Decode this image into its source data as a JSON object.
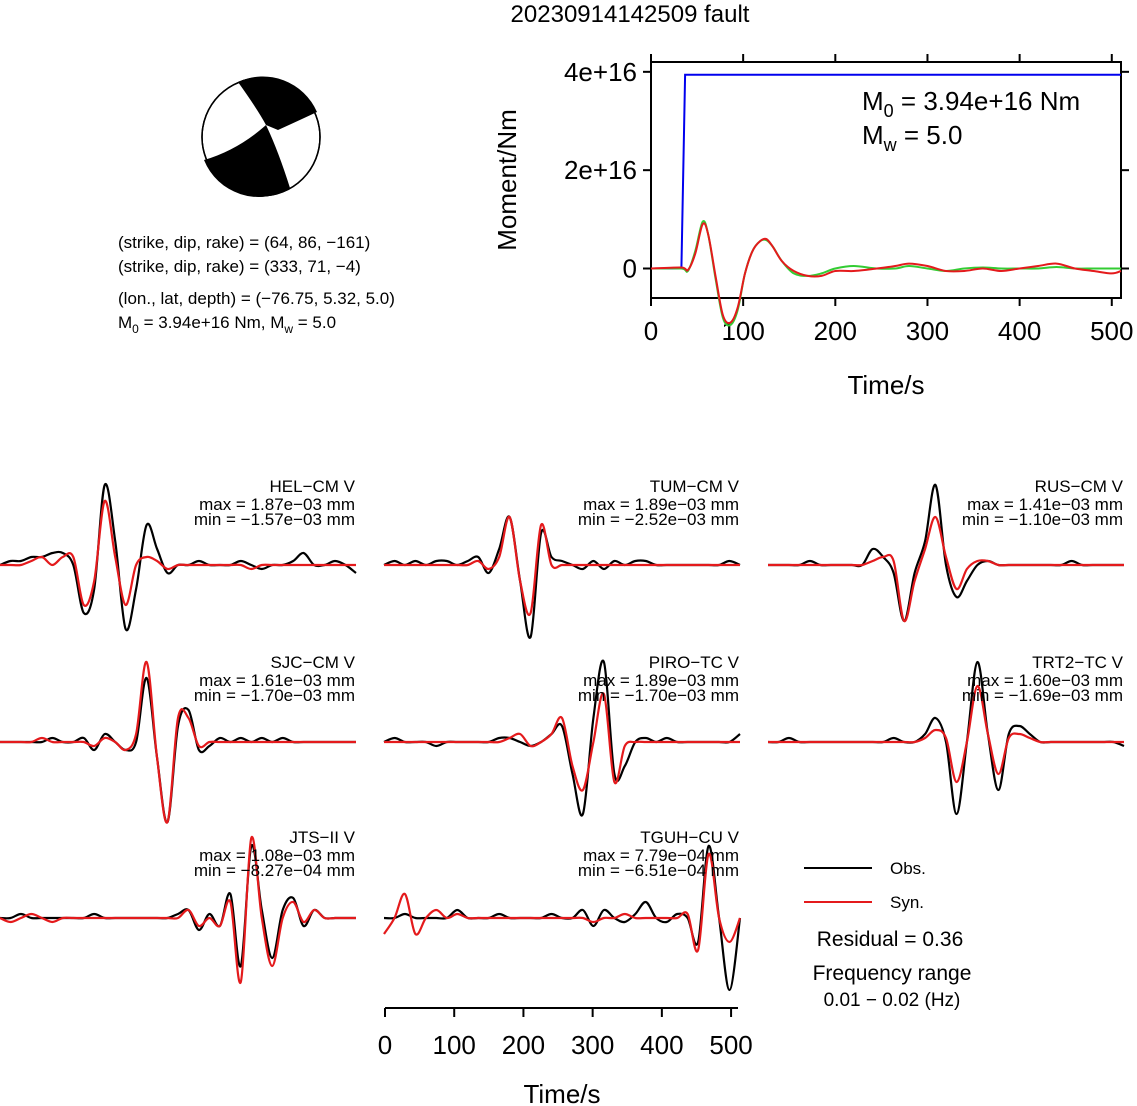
{
  "title": "20230914142509 fault",
  "mechanism": {
    "lines": [
      "(strike, dip, rake) = (64, 86, −161)",
      "(strike, dip, rake) = (333, 71, −4)",
      "(lon., lat, depth) = (−76.75, 5.32, 5.0)"
    ],
    "m0_line_prefix": "M",
    "m0_line_sub": "0",
    "m0_line_rest": " = 3.94e+16 Nm, M",
    "mw_line_sub": "w",
    "mw_line_rest": " = 5.0"
  },
  "moment_box": {
    "m0_prefix": "M",
    "m0_sub": "0",
    "m0_value": " = 3.94e+16 Nm",
    "mw_prefix": "M",
    "mw_sub": "w",
    "mw_value": " = 5.0"
  },
  "legend": {
    "obs": "Obs.",
    "syn": "Syn."
  },
  "residual": "Residual = 0.36",
  "freq_label": "Frequency range",
  "freq_value": "0.01 − 0.02 (Hz)",
  "colors": {
    "obs": "#000000",
    "syn": "#e41a1c",
    "moment": "#0000ee",
    "green": "#33cc33"
  },
  "chart_data": [
    {
      "type": "line",
      "ylabel": "Moment/Nm",
      "xlabel": "Time/s",
      "xlim": [
        0,
        510
      ],
      "ylim": [
        -6000000000000000.0,
        4.2e+16
      ],
      "xticks": [
        0,
        100,
        200,
        300,
        400,
        500
      ],
      "yticks": [
        0,
        2e+16,
        4e+16
      ],
      "ytick_labels": [
        "0",
        "2e+16",
        "4e+16"
      ],
      "series": [
        {
          "x": [
            0,
            33,
            37,
            510
          ],
          "y": [
            0,
            0,
            3.94e+16,
            3.94e+16
          ]
        },
        {
          "x": [
            0,
            33,
            40,
            48,
            56,
            62,
            70,
            78,
            86,
            94,
            102,
            110,
            118,
            125,
            132,
            142,
            155,
            170,
            185,
            200,
            220,
            245,
            265,
            280,
            300,
            320,
            340,
            360,
            380,
            400,
            420,
            440,
            460,
            480,
            500,
            510
          ],
          "y": [
            0,
            0,
            -500000000000000.0,
            3500000000000000.0,
            9500000000000000.0,
            7000000000000000.0,
            -2000000000000000.0,
            -1e+16,
            -1.15e+16,
            -8500000000000000.0,
            -1000000000000000.0,
            3500000000000000.0,
            5500000000000000.0,
            5800000000000000.0,
            4500000000000000.0,
            1500000000000000.0,
            -1000000000000000.0,
            -1500000000000000.0,
            -1000000000000000.0,
            0.0,
            500000000000000.0,
            0.0,
            0.0,
            500000000000000.0,
            0.0,
            -500000000000000.0,
            0.0,
            200000000000000.0,
            0.0,
            0.0,
            0.0,
            300000000000000.0,
            0.0,
            0.0,
            0.0,
            0.0
          ]
        },
        {
          "x": [
            0,
            33,
            40,
            48,
            56,
            62,
            70,
            78,
            86,
            94,
            102,
            110,
            118,
            125,
            132,
            142,
            155,
            170,
            185,
            200,
            220,
            245,
            265,
            280,
            300,
            320,
            340,
            360,
            380,
            400,
            420,
            440,
            460,
            480,
            500,
            510
          ],
          "y": [
            0,
            200000000000000.0,
            -300000000000000.0,
            3000000000000000.0,
            9000000000000000.0,
            7000000000000000.0,
            -1500000000000000.0,
            -9500000000000000.0,
            -1.1e+16,
            -8000000000000000.0,
            -1000000000000000.0,
            3500000000000000.0,
            5500000000000000.0,
            6000000000000000.0,
            4500000000000000.0,
            1500000000000000.0,
            -500000000000000.0,
            -1500000000000000.0,
            -1500000000000000.0,
            -500000000000000.0,
            -500000000000000.0,
            0.0,
            500000000000000.0,
            1000000000000000.0,
            500000000000000.0,
            -500000000000000.0,
            -500000000000000.0,
            0.0,
            -500000000000000.0,
            0.0,
            500000000000000.0,
            1000000000000000.0,
            0.0,
            -500000000000000.0,
            -1000000000000000.0,
            -500000000000000.0
          ]
        }
      ]
    },
    {
      "type": "line",
      "xlabel": "Time/s",
      "xlim": [
        0,
        510
      ],
      "xticks": [
        0,
        100,
        200,
        300,
        400,
        500
      ],
      "stations": [
        {
          "name": "HEL−CM V",
          "max": "max = 1.87e−03 mm",
          "min": "min = −1.57e−03 mm",
          "obs": [
            0.0,
            0.05,
            0.05,
            0.1,
            0.1,
            0.15,
            0.15,
            0.0,
            -0.6,
            -0.3,
            1.0,
            0.3,
            -0.8,
            -0.3,
            0.5,
            0.2,
            -0.1,
            0.0,
            0.0,
            0.05,
            0.0,
            0.0,
            0.0,
            0.05,
            0.0,
            -0.05,
            0.0,
            0.0,
            0.05,
            0.15,
            0.0,
            0.0,
            0.05,
            0.0,
            -0.1
          ],
          "syn": [
            0.0,
            0.0,
            0.0,
            0.05,
            0.1,
            0.0,
            0.1,
            0.1,
            -0.5,
            -0.2,
            0.8,
            0.1,
            -0.5,
            0.0,
            0.1,
            0.05,
            -0.05,
            0.0,
            0.0,
            0.0,
            0.0,
            0.0,
            0.0,
            0.0,
            -0.05,
            0.0,
            0.0,
            0.0,
            0.0,
            0.0,
            0.0,
            0.0,
            0.0,
            0.0,
            0.0
          ]
        },
        {
          "name": "TUM−CM V",
          "max": "max = 1.89e−03 mm",
          "min": "min = −2.52e−03 mm",
          "obs": [
            0.0,
            0.05,
            0.0,
            0.05,
            0.0,
            0.05,
            0.05,
            0.0,
            0.05,
            0.1,
            -0.1,
            0.2,
            0.6,
            -0.2,
            -0.9,
            0.4,
            0.1,
            0.05,
            0.0,
            -0.05,
            0.05,
            -0.05,
            0.05,
            0.0,
            0.05,
            0.05,
            0.0,
            0.0,
            0.0,
            0.0,
            0.0,
            0.0,
            0.0,
            0.05,
            0.0
          ],
          "syn": [
            0.0,
            0.0,
            0.0,
            0.0,
            0.0,
            0.0,
            0.0,
            0.0,
            0.0,
            0.05,
            -0.05,
            0.1,
            0.6,
            -0.2,
            -0.6,
            0.5,
            0.0,
            0.0,
            0.0,
            0.0,
            0.0,
            0.0,
            0.0,
            0.0,
            0.0,
            0.0,
            0.0,
            0.0,
            0.0,
            0.0,
            0.0,
            0.0,
            0.0,
            0.0,
            0.0
          ]
        },
        {
          "name": "RUS−CM V",
          "max": "max = 1.41e−03 mm",
          "min": "min = −1.10e−03 mm",
          "obs": [
            0.0,
            0.0,
            0.0,
            0.0,
            0.05,
            0.0,
            0.0,
            0.0,
            0.0,
            0.0,
            0.2,
            0.1,
            -0.1,
            -0.7,
            -0.1,
            0.3,
            1.0,
            0.0,
            -0.4,
            -0.2,
            0.0,
            0.05,
            0.0,
            0.0,
            0.0,
            0.0,
            0.0,
            0.0,
            0.0,
            0.05,
            0.0,
            0.0,
            0.0,
            0.0,
            0.0
          ],
          "syn": [
            0.0,
            0.0,
            0.0,
            0.0,
            0.0,
            0.0,
            0.0,
            0.0,
            0.0,
            0.0,
            0.05,
            0.1,
            0.05,
            -0.7,
            -0.2,
            0.2,
            0.6,
            0.1,
            -0.3,
            -0.05,
            0.05,
            0.05,
            0.0,
            0.0,
            0.0,
            0.0,
            0.0,
            0.0,
            0.0,
            0.0,
            0.0,
            0.0,
            0.0,
            0.0,
            0.0
          ]
        },
        {
          "name": "SJC−CM V",
          "max": "max = 1.61e−03 mm",
          "min": "min = −1.70e−03 mm",
          "obs": [
            0.0,
            0.0,
            0.0,
            0.0,
            0.0,
            0.05,
            0.0,
            0.0,
            0.05,
            -0.1,
            0.1,
            0.0,
            -0.1,
            0.0,
            0.8,
            -0.2,
            -1.0,
            0.2,
            0.4,
            -0.1,
            -0.05,
            0.05,
            0.0,
            0.05,
            0.0,
            0.05,
            0.0,
            0.05,
            0.0,
            0.0,
            0.0,
            0.0,
            0.0,
            0.0,
            0.0
          ],
          "syn": [
            0.0,
            0.0,
            0.0,
            0.0,
            0.05,
            0.0,
            0.0,
            0.0,
            0.0,
            -0.05,
            0.05,
            0.0,
            -0.1,
            0.1,
            1.0,
            -0.2,
            -1.0,
            0.3,
            0.3,
            -0.05,
            0.0,
            0.0,
            0.0,
            0.0,
            0.0,
            0.0,
            0.0,
            0.0,
            0.0,
            0.0,
            0.0,
            0.0,
            0.0,
            0.0,
            0.0
          ]
        },
        {
          "name": "PIRO−TC V",
          "max": "max = 1.89e−03 mm",
          "min": "min = −1.70e−03 mm",
          "obs": [
            0.0,
            0.05,
            0.0,
            0.0,
            0.0,
            -0.05,
            0.0,
            0.0,
            0.0,
            0.0,
            0.0,
            0.05,
            0.05,
            0.0,
            -0.05,
            0.0,
            0.1,
            0.2,
            -0.4,
            -0.9,
            0.3,
            1.0,
            -0.4,
            -0.3,
            0.0,
            0.05,
            0.0,
            0.05,
            0.0,
            0.0,
            0.0,
            0.0,
            0.0,
            0.0,
            0.1
          ],
          "syn": [
            0.0,
            0.0,
            0.0,
            0.0,
            0.0,
            0.0,
            0.0,
            0.0,
            0.0,
            0.0,
            0.0,
            0.0,
            0.05,
            0.1,
            -0.05,
            0.0,
            0.1,
            0.3,
            -0.3,
            -0.6,
            0.0,
            0.6,
            -0.5,
            -0.05,
            0.0,
            0.0,
            0.0,
            0.0,
            0.0,
            0.0,
            0.0,
            0.0,
            0.0,
            0.0,
            0.0
          ]
        },
        {
          "name": "TRT2−TC V",
          "max": "max = 1.60e−03 mm",
          "min": "min = −1.69e−03 mm",
          "obs": [
            0.0,
            0.0,
            0.05,
            0.0,
            0.0,
            0.0,
            0.0,
            0.0,
            0.0,
            0.0,
            0.0,
            0.0,
            0.05,
            0.0,
            0.0,
            0.1,
            0.3,
            0.0,
            -0.9,
            0.0,
            1.0,
            0.1,
            -0.6,
            0.1,
            0.2,
            0.1,
            0.0,
            0.0,
            0.0,
            0.0,
            0.0,
            0.0,
            0.0,
            0.0,
            -0.05
          ],
          "syn": [
            0.0,
            0.0,
            0.0,
            0.0,
            0.0,
            0.0,
            0.0,
            0.0,
            0.0,
            0.0,
            0.0,
            0.0,
            0.0,
            0.0,
            0.0,
            0.05,
            0.15,
            0.05,
            -0.5,
            0.0,
            0.7,
            0.1,
            -0.4,
            0.05,
            0.1,
            0.05,
            0.0,
            0.0,
            0.0,
            0.0,
            0.0,
            0.0,
            0.0,
            0.0,
            0.0
          ]
        },
        {
          "name": "JTS−II V",
          "max": "max = 1.08e−03 mm",
          "min": "min = −8.27e−04 mm",
          "obs": [
            0.0,
            0.0,
            0.05,
            0.0,
            0.0,
            0.0,
            0.0,
            0.0,
            0.0,
            0.05,
            0.0,
            0.0,
            0.0,
            0.0,
            0.0,
            0.0,
            0.0,
            0.05,
            0.1,
            -0.15,
            0.05,
            -0.1,
            0.3,
            -0.6,
            0.9,
            0.1,
            -0.5,
            0.1,
            0.25,
            -0.1,
            0.1,
            0.0,
            0.0,
            0.0,
            0.0
          ],
          "syn": [
            0.0,
            -0.05,
            0.0,
            0.05,
            0.0,
            -0.05,
            0.0,
            0.0,
            0.0,
            0.0,
            0.0,
            0.0,
            0.0,
            0.0,
            0.0,
            0.0,
            0.0,
            0.0,
            0.1,
            -0.1,
            0.0,
            -0.1,
            0.2,
            -0.8,
            1.0,
            0.0,
            -0.6,
            0.0,
            0.2,
            -0.05,
            0.1,
            0.0,
            0.0,
            0.0,
            0.0
          ]
        },
        {
          "name": "TGUH−CU V",
          "max": "max = 7.79e−04 mm",
          "min": "min = −6.51e−04 mm",
          "obs": [
            0.0,
            0.0,
            0.05,
            0.0,
            0.0,
            0.0,
            0.0,
            0.1,
            0.0,
            0.0,
            0.0,
            0.05,
            0.0,
            0.0,
            0.0,
            0.0,
            0.05,
            0.0,
            0.0,
            0.1,
            -0.1,
            0.1,
            0.0,
            -0.05,
            0.05,
            0.2,
            0.0,
            -0.05,
            0.05,
            0.0,
            -0.3,
            0.9,
            0.0,
            -0.9,
            0.0
          ],
          "syn": [
            -0.2,
            0.0,
            0.3,
            -0.2,
            0.0,
            0.1,
            0.0,
            0.05,
            0.0,
            0.0,
            0.0,
            0.0,
            0.0,
            0.0,
            0.0,
            0.0,
            0.0,
            0.0,
            0.0,
            0.0,
            -0.05,
            0.0,
            0.0,
            0.05,
            0.0,
            0.0,
            0.0,
            0.0,
            0.0,
            0.05,
            -0.4,
            0.8,
            0.0,
            -0.3,
            0.0
          ]
        }
      ]
    }
  ]
}
